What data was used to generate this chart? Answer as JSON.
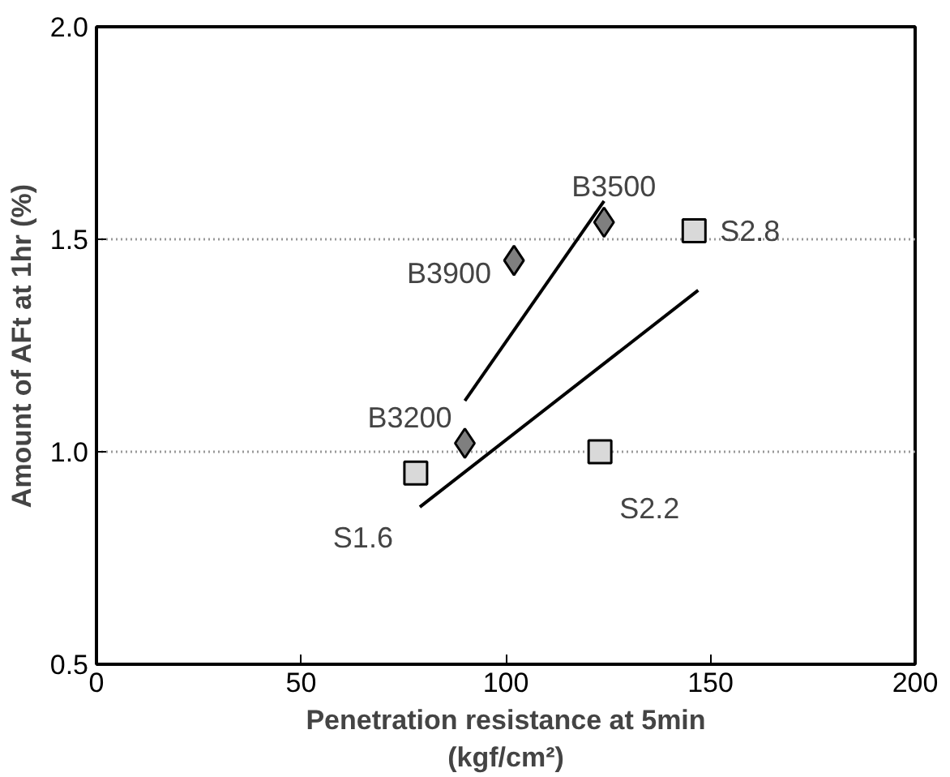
{
  "chart_data": {
    "type": "scatter",
    "xlabel": "Penetration resistance at 5min\n(kgf/cm²)",
    "ylabel": "Amount of AFt at 1hr (%)",
    "xlim": [
      0,
      200
    ],
    "xticks": [
      0,
      50,
      100,
      150,
      200
    ],
    "ylim": [
      0.5,
      2.0
    ],
    "yticks": [
      {
        "value": 0.5,
        "label": "0.5"
      },
      {
        "value": 1.0,
        "label": "1.0"
      },
      {
        "value": 1.5,
        "label": "1.5"
      },
      {
        "value": 2.0,
        "label": "2.0"
      }
    ],
    "grid": "y",
    "series": [
      {
        "marker": "diamond",
        "color": "#7f7f7f",
        "x": [
          90,
          102,
          124
        ],
        "values": [
          1.02,
          1.45,
          1.54
        ]
      },
      {
        "marker": "square",
        "color": "#d9d9d9",
        "x": [
          78,
          123,
          146
        ],
        "values": [
          0.95,
          1.0,
          1.52
        ]
      },
      {
        "type": "line",
        "color": "#000000",
        "x": [
          90,
          124
        ],
        "values": [
          1.12,
          1.59
        ]
      },
      {
        "type": "line",
        "color": "#000000",
        "x": [
          79,
          147
        ],
        "values": [
          0.87,
          1.38
        ]
      }
    ],
    "annotations": [
      {
        "text": "B3200",
        "x": 90,
        "y": 1.02
      },
      {
        "text": "B3900",
        "x": 102,
        "y": 1.45
      },
      {
        "text": "B3500",
        "x": 124,
        "y": 1.54
      },
      {
        "text": "S1.6",
        "x": 78,
        "y": 0.95
      },
      {
        "text": "S2.2",
        "x": 123,
        "y": 1.0
      },
      {
        "text": "S2.8",
        "x": 146,
        "y": 1.52
      }
    ]
  }
}
